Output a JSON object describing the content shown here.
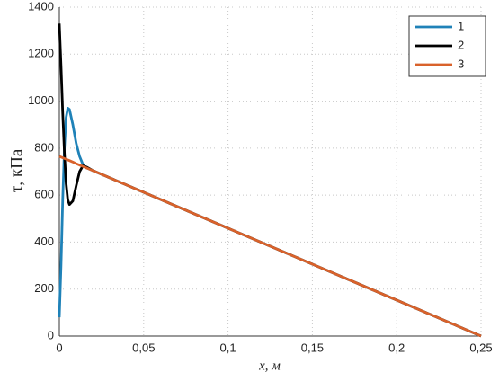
{
  "chart_data": {
    "type": "line",
    "x": [
      0,
      0.001,
      0.002,
      0.003,
      0.004,
      0.005,
      0.006,
      0.008,
      0.01,
      0.012,
      0.014,
      0.016,
      0.018,
      0.02,
      0.25
    ],
    "series": [
      {
        "name": "1",
        "color": "#1f82b8",
        "values": [
          80,
          300,
          580,
          800,
          930,
          970,
          965,
          900,
          820,
          765,
          730,
          716,
          710,
          704,
          0
        ]
      },
      {
        "name": "2",
        "color": "#000000",
        "values": [
          1330,
          1150,
          950,
          780,
          650,
          580,
          560,
          575,
          640,
          700,
          725,
          720,
          712,
          704,
          0
        ]
      },
      {
        "name": "3",
        "color": "#d9622b",
        "values": [
          765,
          762,
          759,
          756,
          753,
          750,
          747,
          741,
          734,
          728,
          722,
          716,
          710,
          704,
          0
        ]
      }
    ],
    "xlabel": "x, м",
    "ylabel": "τ, кПа",
    "xlim": [
      0,
      0.25
    ],
    "xticks": [
      0,
      {
        "value": 0.05,
        "label": "0,05"
      },
      {
        "value": 0.1,
        "label": "0,1"
      },
      {
        "value": 0.15,
        "label": "0,15"
      },
      {
        "value": 0.2,
        "label": "0,2"
      },
      {
        "value": 0.25,
        "label": "0,25"
      }
    ],
    "ylim": [
      0,
      1400
    ],
    "yticks": [
      0,
      200,
      400,
      600,
      800,
      1000,
      1200,
      1400
    ],
    "grid": true,
    "legend": "upper right"
  }
}
